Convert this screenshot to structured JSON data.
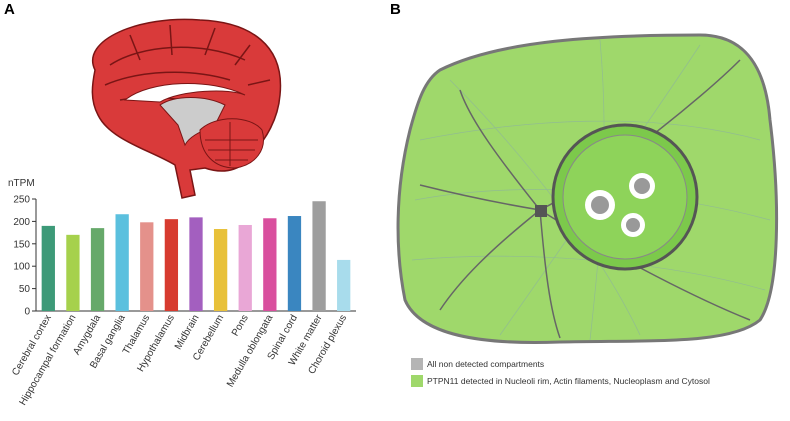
{
  "panel_labels": [
    "A",
    "B"
  ],
  "chart_data": {
    "type": "bar",
    "ylabel": "nTPM",
    "categories": [
      "Cerebral cortex",
      "Hippocampal formation",
      "Amygdala",
      "Basal ganglia",
      "Thalamus",
      "Hypothalamus",
      "Midbrain",
      "Cerebellum",
      "Pons",
      "Medulla oblongata",
      "Spinal cord",
      "White matter",
      "Choroid plexus"
    ],
    "values": [
      190,
      170,
      185,
      216,
      198,
      205,
      209,
      183,
      192,
      207,
      212,
      245,
      114
    ],
    "colors": [
      "#3d9a78",
      "#a6d14c",
      "#66a96a",
      "#5bc0de",
      "#e4918b",
      "#d73b2f",
      "#a35fbf",
      "#e8c13a",
      "#e9a7d6",
      "#d94f9e",
      "#3a86c0",
      "#9e9e9e",
      "#a8dcec"
    ],
    "ylim": [
      0,
      250
    ],
    "yticks": [
      0,
      50,
      100,
      150,
      200,
      250
    ],
    "grid": false
  },
  "legend": [
    {
      "label": "All non detected compartments",
      "color": "#b5b5b5"
    },
    {
      "label": "PTPN11 detected in Nucleoli rim, Actin filaments, Nucleoplasm and Cytosol",
      "color": "#9fd86b"
    }
  ]
}
